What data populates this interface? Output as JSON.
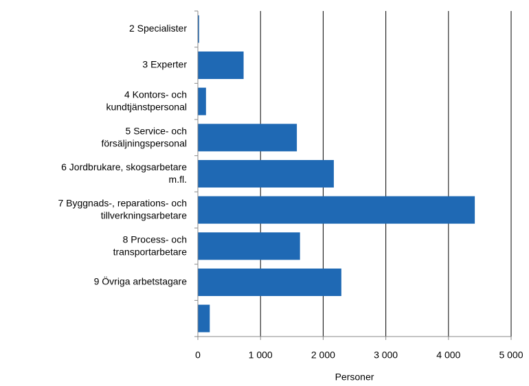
{
  "chart_data": {
    "type": "barh",
    "categories": [
      "2 Specialister",
      "3 Experter",
      "4 Kontors- och\nkundtjänstpersonal",
      "5 Service- och\nförsäljningspersonal",
      "6 Jordbrukare, skogsarbetare\nm.fl.",
      "7 Byggnads-, reparations- och\ntillverkningsarbetare",
      "8 Process- och\ntransportarbetare",
      "9 Övriga arbetstagare",
      null
    ],
    "values": [
      20,
      730,
      130,
      1580,
      2170,
      4420,
      1630,
      2290,
      190
    ],
    "color": "#1f69b4",
    "xlabel": "Personer",
    "xlim": [
      0,
      5000
    ],
    "xticks": [
      0,
      {
        "value": 1000,
        "label": "1 000"
      },
      {
        "value": 2000,
        "label": "2 000"
      },
      {
        "value": 3000,
        "label": "3 000"
      },
      {
        "value": 4000,
        "label": "4 000"
      },
      {
        "value": 5000,
        "label": "5 000"
      }
    ],
    "grid": true
  }
}
